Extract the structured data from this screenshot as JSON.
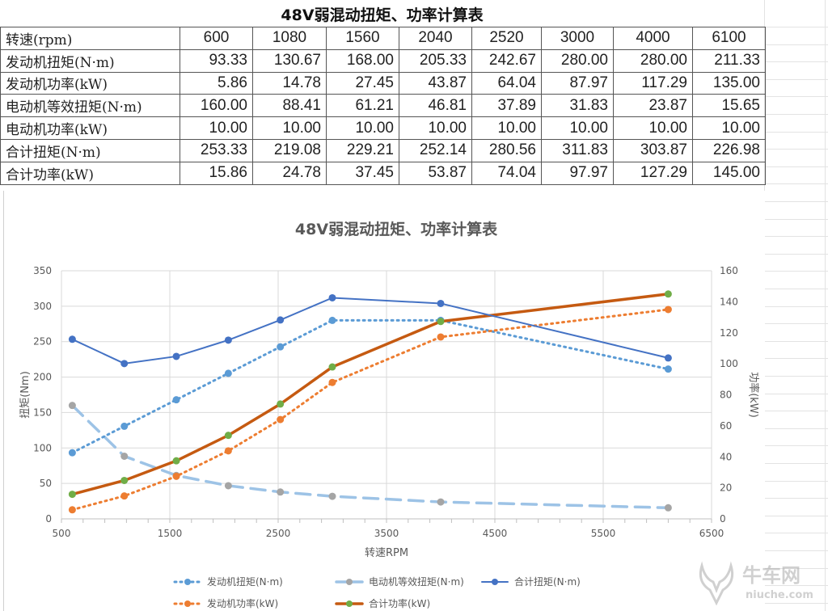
{
  "table": {
    "title": "48V弱混动扭矩、功率计算表",
    "header": {
      "label": "转速(rpm)",
      "values": [
        "600",
        "1080",
        "1560",
        "2040",
        "2520",
        "3000",
        "4000",
        "6100"
      ]
    },
    "rows": [
      {
        "label": "发动机扭矩(N·m)",
        "values": [
          "93.33",
          "130.67",
          "168.00",
          "205.33",
          "242.67",
          "280.00",
          "280.00",
          "211.33"
        ]
      },
      {
        "label": "发动机功率(kW)",
        "values": [
          "5.86",
          "14.78",
          "27.45",
          "43.87",
          "64.04",
          "87.97",
          "117.29",
          "135.00"
        ]
      },
      {
        "label": "电动机等效扭矩(N·m)",
        "values": [
          "160.00",
          "88.41",
          "61.21",
          "46.81",
          "37.89",
          "31.83",
          "23.87",
          "15.65"
        ]
      },
      {
        "label": "电动机功率(kW)",
        "values": [
          "10.00",
          "10.00",
          "10.00",
          "10.00",
          "10.00",
          "10.00",
          "10.00",
          "10.00"
        ]
      },
      {
        "label": "合计扭矩(N·m)",
        "values": [
          "253.33",
          "219.08",
          "229.21",
          "252.14",
          "280.56",
          "311.83",
          "303.87",
          "226.98"
        ]
      },
      {
        "label": "合计功率(kW)",
        "values": [
          "15.86",
          "24.78",
          "37.45",
          "53.87",
          "74.04",
          "97.97",
          "127.29",
          "145.00"
        ]
      }
    ]
  },
  "chart_data": {
    "type": "line",
    "title": "48V弱混动扭矩、功率计算表",
    "xlabel": "转速RPM",
    "ylabel": "扭矩(Nm)",
    "y2label": "功率(kW)",
    "x": [
      600,
      1080,
      1560,
      2040,
      2520,
      3000,
      4000,
      6100
    ],
    "xlim": [
      500,
      6500
    ],
    "xticks": [
      500,
      1500,
      2500,
      3500,
      4500,
      5500,
      6500
    ],
    "ylim": [
      0,
      350
    ],
    "yticks": [
      0,
      50,
      100,
      150,
      200,
      250,
      300,
      350
    ],
    "y2lim": [
      0,
      160
    ],
    "y2ticks": [
      0,
      20,
      40,
      60,
      80,
      100,
      120,
      140,
      160
    ],
    "grid": true,
    "legend_position": "bottom",
    "series": [
      {
        "name": "发动机扭矩(N·m)",
        "axis": "left",
        "style": "dotted",
        "color": "#5B9BD5",
        "marker": "#5B9BD5",
        "values": [
          93.33,
          130.67,
          168.0,
          205.33,
          242.67,
          280.0,
          280.0,
          211.33
        ]
      },
      {
        "name": "电动机等效扭矩(N·m)",
        "axis": "left",
        "style": "dashed",
        "color": "#9DC3E6",
        "marker": "#A5A5A5",
        "values": [
          160.0,
          88.41,
          61.21,
          46.81,
          37.89,
          31.83,
          23.87,
          15.65
        ]
      },
      {
        "name": "合计扭矩(N·m)",
        "axis": "left",
        "style": "solid",
        "color": "#4472C4",
        "marker": "#4472C4",
        "values": [
          253.33,
          219.08,
          229.21,
          252.14,
          280.56,
          311.83,
          303.87,
          226.98
        ]
      },
      {
        "name": "发动机功率(kW)",
        "axis": "right",
        "style": "dotted",
        "color": "#ED7D31",
        "marker": "#ED7D31",
        "values": [
          5.86,
          14.78,
          27.45,
          43.87,
          64.04,
          87.97,
          117.29,
          135.0
        ]
      },
      {
        "name": "合计功率(kW)",
        "axis": "right",
        "style": "solid-thick",
        "color": "#C55A11",
        "marker": "#70AD47",
        "values": [
          15.86,
          24.78,
          37.45,
          53.87,
          74.04,
          97.97,
          127.29,
          145.0
        ]
      }
    ]
  },
  "watermark": {
    "brand": "牛车网",
    "site": "niuche.com"
  }
}
